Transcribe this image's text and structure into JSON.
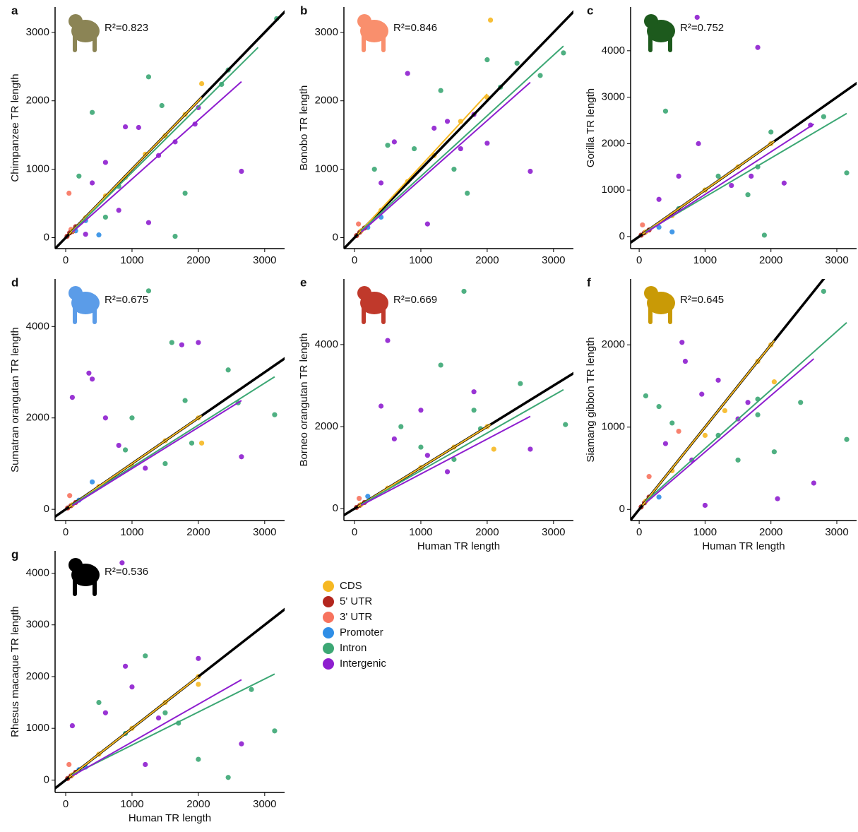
{
  "legend": [
    {
      "name": "CDS",
      "color": "#f6b822"
    },
    {
      "name": "5' UTR",
      "color": "#b3261e"
    },
    {
      "name": "3' UTR",
      "color": "#f7735e"
    },
    {
      "name": "Promoter",
      "color": "#2f8ee6"
    },
    {
      "name": "Intron",
      "color": "#3ca774"
    },
    {
      "name": "Intergenic",
      "color": "#8e1ecf"
    }
  ],
  "chart_data": [
    {
      "type": "scatter",
      "panel_label": "a",
      "ylabel": "Chimpanzee TR length",
      "annotation": "R²=0.823",
      "icon_color": "#8b8455",
      "identity_line": true,
      "xlim": [
        -160,
        3300
      ],
      "ylim": [
        -160,
        3370
      ],
      "xticks": [
        0,
        1000,
        2000,
        3000
      ],
      "yticks": [
        0,
        1000,
        2000,
        3000
      ],
      "series": [
        {
          "x": [
            100,
            300,
            600,
            900,
            1200,
            1500,
            1800,
            2050
          ],
          "y": [
            100,
            290,
            610,
            880,
            1220,
            1490,
            1800,
            2250
          ],
          "fit_x": [
            50,
            2050
          ],
          "fit_y": [
            50,
            2050
          ]
        },
        {
          "x": [
            20,
            60,
            100,
            150
          ],
          "y": [
            20,
            70,
            90,
            160
          ]
        },
        {
          "x": [
            50,
            80
          ],
          "y": [
            650,
            120
          ]
        },
        {
          "x": [
            150,
            300,
            500
          ],
          "y": [
            100,
            250,
            40
          ]
        },
        {
          "x": [
            1250,
            1450,
            3180,
            2450,
            1650,
            400,
            200,
            800,
            1800,
            600,
            2350
          ],
          "y": [
            2350,
            1930,
            3200,
            2450,
            20,
            1830,
            900,
            750,
            650,
            300,
            2240
          ],
          "fit_x": [
            100,
            2900
          ],
          "fit_y": [
            90,
            2780
          ]
        },
        {
          "x": [
            900,
            1100,
            1250,
            1650,
            1950,
            2650,
            600,
            400,
            800,
            1400,
            2000,
            300
          ],
          "y": [
            1620,
            1610,
            220,
            1400,
            1660,
            970,
            1100,
            800,
            400,
            1200,
            1900,
            50
          ],
          "fit_x": [
            100,
            2650
          ],
          "fit_y": [
            80,
            2280
          ]
        }
      ]
    },
    {
      "type": "scatter",
      "panel_label": "b",
      "ylabel": "Bonobo TR length",
      "annotation": "R²=0.846",
      "icon_color": "#f98f6d",
      "identity_line": true,
      "xlim": [
        -160,
        3300
      ],
      "ylim": [
        -160,
        3370
      ],
      "xticks": [
        0,
        1000,
        2000,
        3000
      ],
      "yticks": [
        0,
        1000,
        2000,
        3000
      ],
      "series": [
        {
          "x": [
            100,
            400,
            800,
            1200,
            1600,
            2000,
            2050
          ],
          "y": [
            100,
            400,
            820,
            1200,
            1700,
            2050,
            3180
          ],
          "fit_x": [
            50,
            2000
          ],
          "fit_y": [
            50,
            2100
          ]
        },
        {
          "x": [
            30,
            80,
            150
          ],
          "y": [
            30,
            80,
            140
          ]
        },
        {
          "x": [
            60
          ],
          "y": [
            200
          ]
        },
        {
          "x": [
            200,
            400
          ],
          "y": [
            150,
            300
          ]
        },
        {
          "x": [
            1300,
            2000,
            2200,
            2450,
            2800,
            3150,
            1700,
            500,
            300,
            900,
            1500
          ],
          "y": [
            2150,
            2600,
            2200,
            2550,
            2370,
            2700,
            650,
            1350,
            1000,
            1300,
            1000
          ],
          "fit_x": [
            100,
            3150
          ],
          "fit_y": [
            100,
            2800
          ]
        },
        {
          "x": [
            800,
            1200,
            1400,
            1800,
            2000,
            2650,
            600,
            400,
            1100,
            1600
          ],
          "y": [
            2400,
            1600,
            1700,
            1800,
            1380,
            970,
            1400,
            800,
            200,
            1300
          ],
          "fit_x": [
            100,
            2650
          ],
          "fit_y": [
            80,
            2270
          ]
        }
      ]
    },
    {
      "type": "scatter",
      "panel_label": "c",
      "ylabel": "Gorilla TR length",
      "annotation": "R²=0.752",
      "icon_color": "#1d5a1d",
      "identity_line": true,
      "xlim": [
        -130,
        3300
      ],
      "ylim": [
        -260,
        4940
      ],
      "xticks": [
        0,
        1000,
        2000,
        3000
      ],
      "yticks": [
        0,
        1000,
        2000,
        3000,
        4000
      ],
      "series": [
        {
          "x": [
            100,
            500,
            1000,
            1500,
            2000
          ],
          "y": [
            100,
            450,
            1000,
            1500,
            2000
          ],
          "fit_x": [
            50,
            2050
          ],
          "fit_y": [
            50,
            2050
          ]
        },
        {
          "x": [
            30,
            80,
            150
          ],
          "y": [
            30,
            80,
            140
          ]
        },
        {
          "x": [
            50
          ],
          "y": [
            250
          ]
        },
        {
          "x": [
            300,
            500
          ],
          "y": [
            200,
            100
          ]
        },
        {
          "x": [
            400,
            1200,
            1800,
            2000,
            2800,
            3150,
            1000,
            600,
            1650,
            1900
          ],
          "y": [
            2700,
            1300,
            1500,
            2250,
            2580,
            1370,
            1000,
            600,
            900,
            30
          ],
          "fit_x": [
            100,
            3150
          ],
          "fit_y": [
            100,
            2650
          ]
        },
        {
          "x": [
            880,
            1800,
            900,
            2200,
            2600,
            1700,
            1400,
            300,
            600
          ],
          "y": [
            4720,
            4070,
            2000,
            1150,
            2400,
            1300,
            1100,
            800,
            1300
          ],
          "fit_x": [
            100,
            2650
          ],
          "fit_y": [
            80,
            2420
          ]
        }
      ]
    },
    {
      "type": "scatter",
      "panel_label": "d",
      "ylabel": "Sumatran orangutan TR length",
      "annotation": "R²=0.675",
      "icon_color": "#5b9ce8",
      "identity_line": true,
      "xlim": [
        -160,
        3300
      ],
      "ylim": [
        -245,
        5040
      ],
      "xticks": [
        0,
        1000,
        2000,
        3000
      ],
      "yticks": [
        0,
        2000,
        4000
      ],
      "series": [
        {
          "x": [
            100,
            500,
            1000,
            1500,
            2000,
            2050
          ],
          "y": [
            100,
            500,
            950,
            1500,
            2000,
            1450
          ],
          "fit_x": [
            50,
            2050
          ],
          "fit_y": [
            50,
            2050
          ]
        },
        {
          "x": [
            30,
            80,
            150
          ],
          "y": [
            30,
            80,
            150
          ]
        },
        {
          "x": [
            60
          ],
          "y": [
            300
          ]
        },
        {
          "x": [
            200,
            400
          ],
          "y": [
            200,
            600
          ]
        },
        {
          "x": [
            1250,
            1600,
            1800,
            2450,
            2600,
            3150,
            1000,
            1900,
            900,
            1500
          ],
          "y": [
            4780,
            3650,
            2380,
            3050,
            2330,
            2070,
            2000,
            1450,
            1300,
            1000
          ],
          "fit_x": [
            100,
            3150
          ],
          "fit_y": [
            100,
            2900
          ]
        },
        {
          "x": [
            100,
            350,
            400,
            600,
            1750,
            2000,
            2650,
            800,
            1200
          ],
          "y": [
            2450,
            2980,
            2850,
            2000,
            3600,
            3650,
            1150,
            1400,
            900
          ],
          "fit_x": [
            100,
            2650
          ],
          "fit_y": [
            80,
            2380
          ]
        }
      ]
    },
    {
      "type": "scatter",
      "panel_label": "e",
      "ylabel": "Borneo orangutan TR length",
      "xlabel": "Human TR length",
      "annotation": "R²=0.669",
      "icon_color": "#c0392b",
      "identity_line": true,
      "xlim": [
        -160,
        3300
      ],
      "ylim": [
        -290,
        5600
      ],
      "xticks": [
        0,
        1000,
        2000,
        3000
      ],
      "yticks": [
        0,
        2000,
        4000
      ],
      "series": [
        {
          "x": [
            100,
            500,
            1000,
            1500,
            2000,
            2100
          ],
          "y": [
            100,
            500,
            1000,
            1500,
            2000,
            1450
          ],
          "fit_x": [
            50,
            2050
          ],
          "fit_y": [
            50,
            2050
          ]
        },
        {
          "x": [
            30,
            80,
            150
          ],
          "y": [
            30,
            80,
            150
          ]
        },
        {
          "x": [
            70
          ],
          "y": [
            250
          ]
        },
        {
          "x": [
            200
          ],
          "y": [
            300
          ]
        },
        {
          "x": [
            1650,
            1300,
            1800,
            2500,
            3180,
            1900,
            1000,
            700,
            1500
          ],
          "y": [
            5300,
            3500,
            2400,
            3050,
            2050,
            1950,
            1500,
            2000,
            1200
          ],
          "fit_x": [
            100,
            3150
          ],
          "fit_y": [
            100,
            2900
          ]
        },
        {
          "x": [
            500,
            400,
            1800,
            1000,
            600,
            1100,
            2650,
            1400
          ],
          "y": [
            4100,
            2500,
            2850,
            2400,
            1700,
            1300,
            1450,
            900
          ],
          "fit_x": [
            100,
            2650
          ],
          "fit_y": [
            80,
            2250
          ]
        }
      ]
    },
    {
      "type": "scatter",
      "panel_label": "f",
      "ylabel": "Siamang gibbon TR length",
      "xlabel": "Human TR length",
      "annotation": "R²=0.645",
      "icon_color": "#c99a06",
      "identity_line": true,
      "xlim": [
        -130,
        3300
      ],
      "ylim": [
        -135,
        2800
      ],
      "xticks": [
        0,
        1000,
        2000,
        3000
      ],
      "yticks": [
        0,
        1000,
        2000
      ],
      "series": [
        {
          "x": [
            100,
            500,
            1000,
            1300,
            1800,
            2000,
            2050
          ],
          "y": [
            100,
            470,
            900,
            1200,
            1800,
            2000,
            1550
          ],
          "fit_x": [
            50,
            2050
          ],
          "fit_y": [
            50,
            2050
          ]
        },
        {
          "x": [
            30,
            80,
            150
          ],
          "y": [
            30,
            80,
            150
          ]
        },
        {
          "x": [
            150,
            600
          ],
          "y": [
            400,
            950
          ]
        },
        {
          "x": [
            300
          ],
          "y": [
            150
          ]
        },
        {
          "x": [
            2800,
            3150,
            2450,
            2050,
            1800,
            500,
            100,
            300,
            1200,
            1500,
            1800
          ],
          "y": [
            2650,
            850,
            1300,
            700,
            1340,
            1050,
            1380,
            1250,
            900,
            600,
            1150
          ],
          "fit_x": [
            100,
            3150
          ],
          "fit_y": [
            100,
            2270
          ]
        },
        {
          "x": [
            650,
            950,
            1200,
            1650,
            2650,
            2100,
            1000,
            800,
            1500,
            400,
            700
          ],
          "y": [
            2030,
            1400,
            1570,
            1300,
            320,
            130,
            50,
            600,
            1100,
            800,
            1800
          ],
          "fit_x": [
            100,
            2650
          ],
          "fit_y": [
            80,
            1830
          ]
        }
      ]
    },
    {
      "type": "scatter",
      "panel_label": "g",
      "ylabel": "Rhesus macaque TR length",
      "xlabel": "Human TR length",
      "annotation": "R²=0.536",
      "icon_color": "#000000",
      "identity_line": true,
      "xlim": [
        -160,
        3300
      ],
      "ylim": [
        -240,
        4430
      ],
      "xticks": [
        0,
        1000,
        2000,
        3000
      ],
      "yticks": [
        0,
        1000,
        2000,
        3000,
        4000
      ],
      "series": [
        {
          "x": [
            100,
            500,
            1000,
            1500,
            2000,
            2000
          ],
          "y": [
            100,
            500,
            1000,
            1500,
            2000,
            1850
          ],
          "fit_x": [
            50,
            2000
          ],
          "fit_y": [
            50,
            2000
          ]
        },
        {
          "x": [
            30,
            80,
            150
          ],
          "y": [
            30,
            80,
            150
          ]
        },
        {
          "x": [
            50
          ],
          "y": [
            300
          ]
        },
        {
          "x": [
            200,
            300
          ],
          "y": [
            200,
            250
          ]
        },
        {
          "x": [
            1200,
            2450,
            2800,
            3150,
            2000,
            1500,
            500,
            900,
            1700
          ],
          "y": [
            2400,
            50,
            1750,
            950,
            400,
            1300,
            1500,
            900,
            1100
          ],
          "fit_x": [
            100,
            3150
          ],
          "fit_y": [
            100,
            2050
          ]
        },
        {
          "x": [
            850,
            900,
            2000,
            2650,
            1000,
            100,
            1400,
            600,
            1200
          ],
          "y": [
            4200,
            2200,
            2350,
            700,
            1800,
            1050,
            1200,
            1300,
            300
          ],
          "fit_x": [
            100,
            2650
          ],
          "fit_y": [
            80,
            1940
          ]
        }
      ]
    }
  ]
}
